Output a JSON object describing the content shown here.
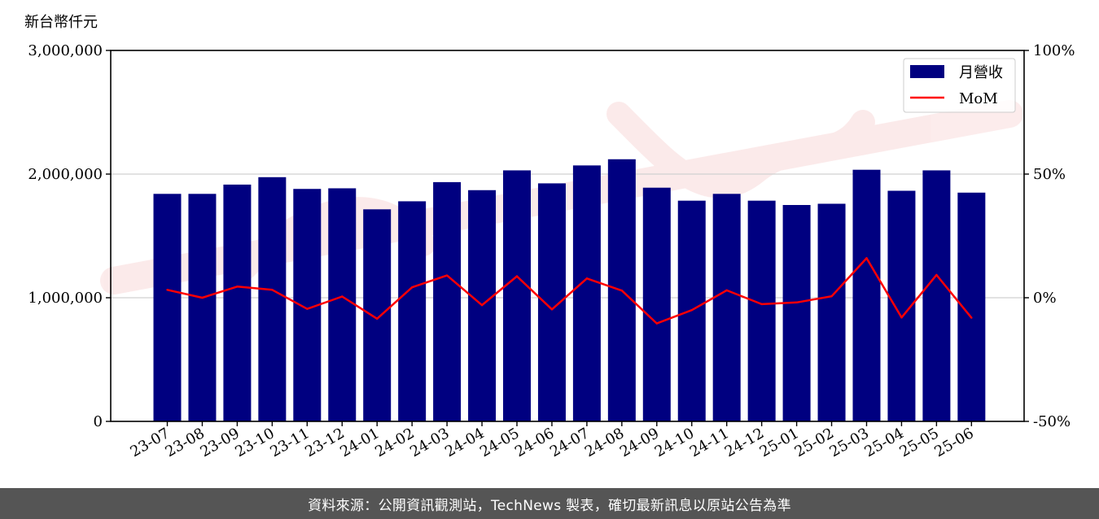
{
  "chart_data": {
    "type": "bar",
    "y_unit_label": "新台幣仟元",
    "categories": [
      "23-07",
      "23-08",
      "23-09",
      "23-10",
      "23-11",
      "23-12",
      "24-01",
      "24-02",
      "24-03",
      "24-04",
      "24-05",
      "24-06",
      "24-07",
      "24-08",
      "24-09",
      "24-10",
      "24-11",
      "24-12",
      "25-01",
      "25-02",
      "25-03",
      "25-04",
      "25-05",
      "25-06"
    ],
    "series": [
      {
        "name": "月營收",
        "type": "bar",
        "axis": "left",
        "color": "#000080",
        "values": [
          1840000,
          1840000,
          1915000,
          1975000,
          1880000,
          1885000,
          1715000,
          1780000,
          1935000,
          1870000,
          2030000,
          1925000,
          2070000,
          2120000,
          1890000,
          1785000,
          1840000,
          1785000,
          1750000,
          1760000,
          2035000,
          1865000,
          2030000,
          1850000
        ]
      },
      {
        "name": "MoM",
        "type": "line",
        "axis": "right",
        "color": "#ff0000",
        "values": [
          3.2,
          0.0,
          4.5,
          3.2,
          -4.5,
          0.5,
          -8.5,
          4.2,
          9.0,
          -3.0,
          8.7,
          -4.7,
          7.8,
          2.9,
          -10.4,
          -5.0,
          3.0,
          -2.6,
          -1.9,
          0.6,
          16.0,
          -8.0,
          9.2,
          -8.1
        ]
      }
    ],
    "y_left": {
      "lim": [
        0,
        3000000
      ],
      "ticks": [
        0,
        1000000,
        2000000,
        3000000
      ],
      "tick_labels": [
        "0",
        "1,000,000",
        "2,000,000",
        "3,000,000"
      ]
    },
    "y_right": {
      "lim": [
        -50,
        100
      ],
      "ticks": [
        -50,
        0,
        50,
        100
      ],
      "tick_labels": [
        "-50%",
        "0%",
        "50%",
        "100%"
      ]
    },
    "grid": "horizontal",
    "legend": {
      "position": "top-right",
      "entries": [
        "月營收",
        "MoM"
      ]
    }
  },
  "footer": {
    "text": "資料來源：公開資訊觀測站，TechNews 製表，確切最新訊息以原站公告為準"
  }
}
